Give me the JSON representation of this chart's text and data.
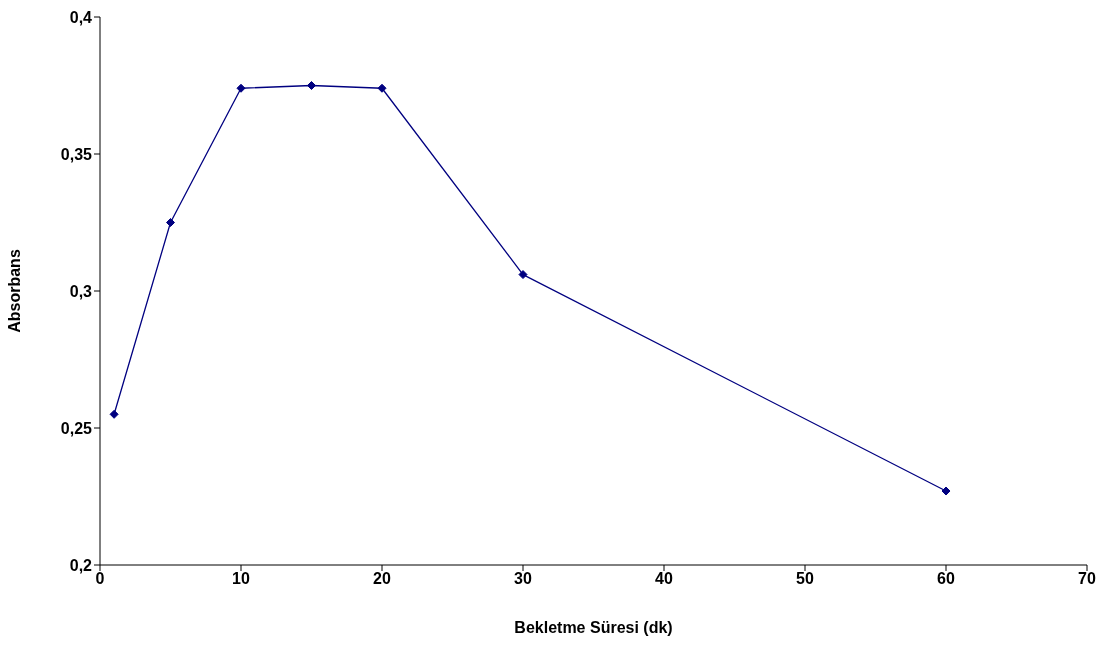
{
  "chart_data": {
    "type": "line",
    "xlabel": "Bekletme Süresi (dk)",
    "ylabel": "Absorbans",
    "x": [
      1,
      5,
      10,
      15,
      20,
      30,
      60
    ],
    "series": [
      {
        "color": "#000080",
        "values": [
          0.255,
          0.325,
          0.374,
          0.375,
          0.374,
          0.306,
          0.227
        ]
      }
    ],
    "xlim": [
      0,
      70
    ],
    "xticks": [
      0,
      10,
      20,
      30,
      40,
      50,
      60,
      70
    ],
    "ylim": [
      0.2,
      0.4
    ],
    "yticks": [
      {
        "value": 0.2,
        "label": "0,2"
      },
      {
        "value": 0.25,
        "label": "0,25"
      },
      {
        "value": 0.3,
        "label": "0,3"
      },
      {
        "value": 0.35,
        "label": "0,35"
      },
      {
        "value": 0.4,
        "label": "0,4"
      }
    ],
    "grid": false,
    "marker": "diamond",
    "line_style": "solid"
  }
}
